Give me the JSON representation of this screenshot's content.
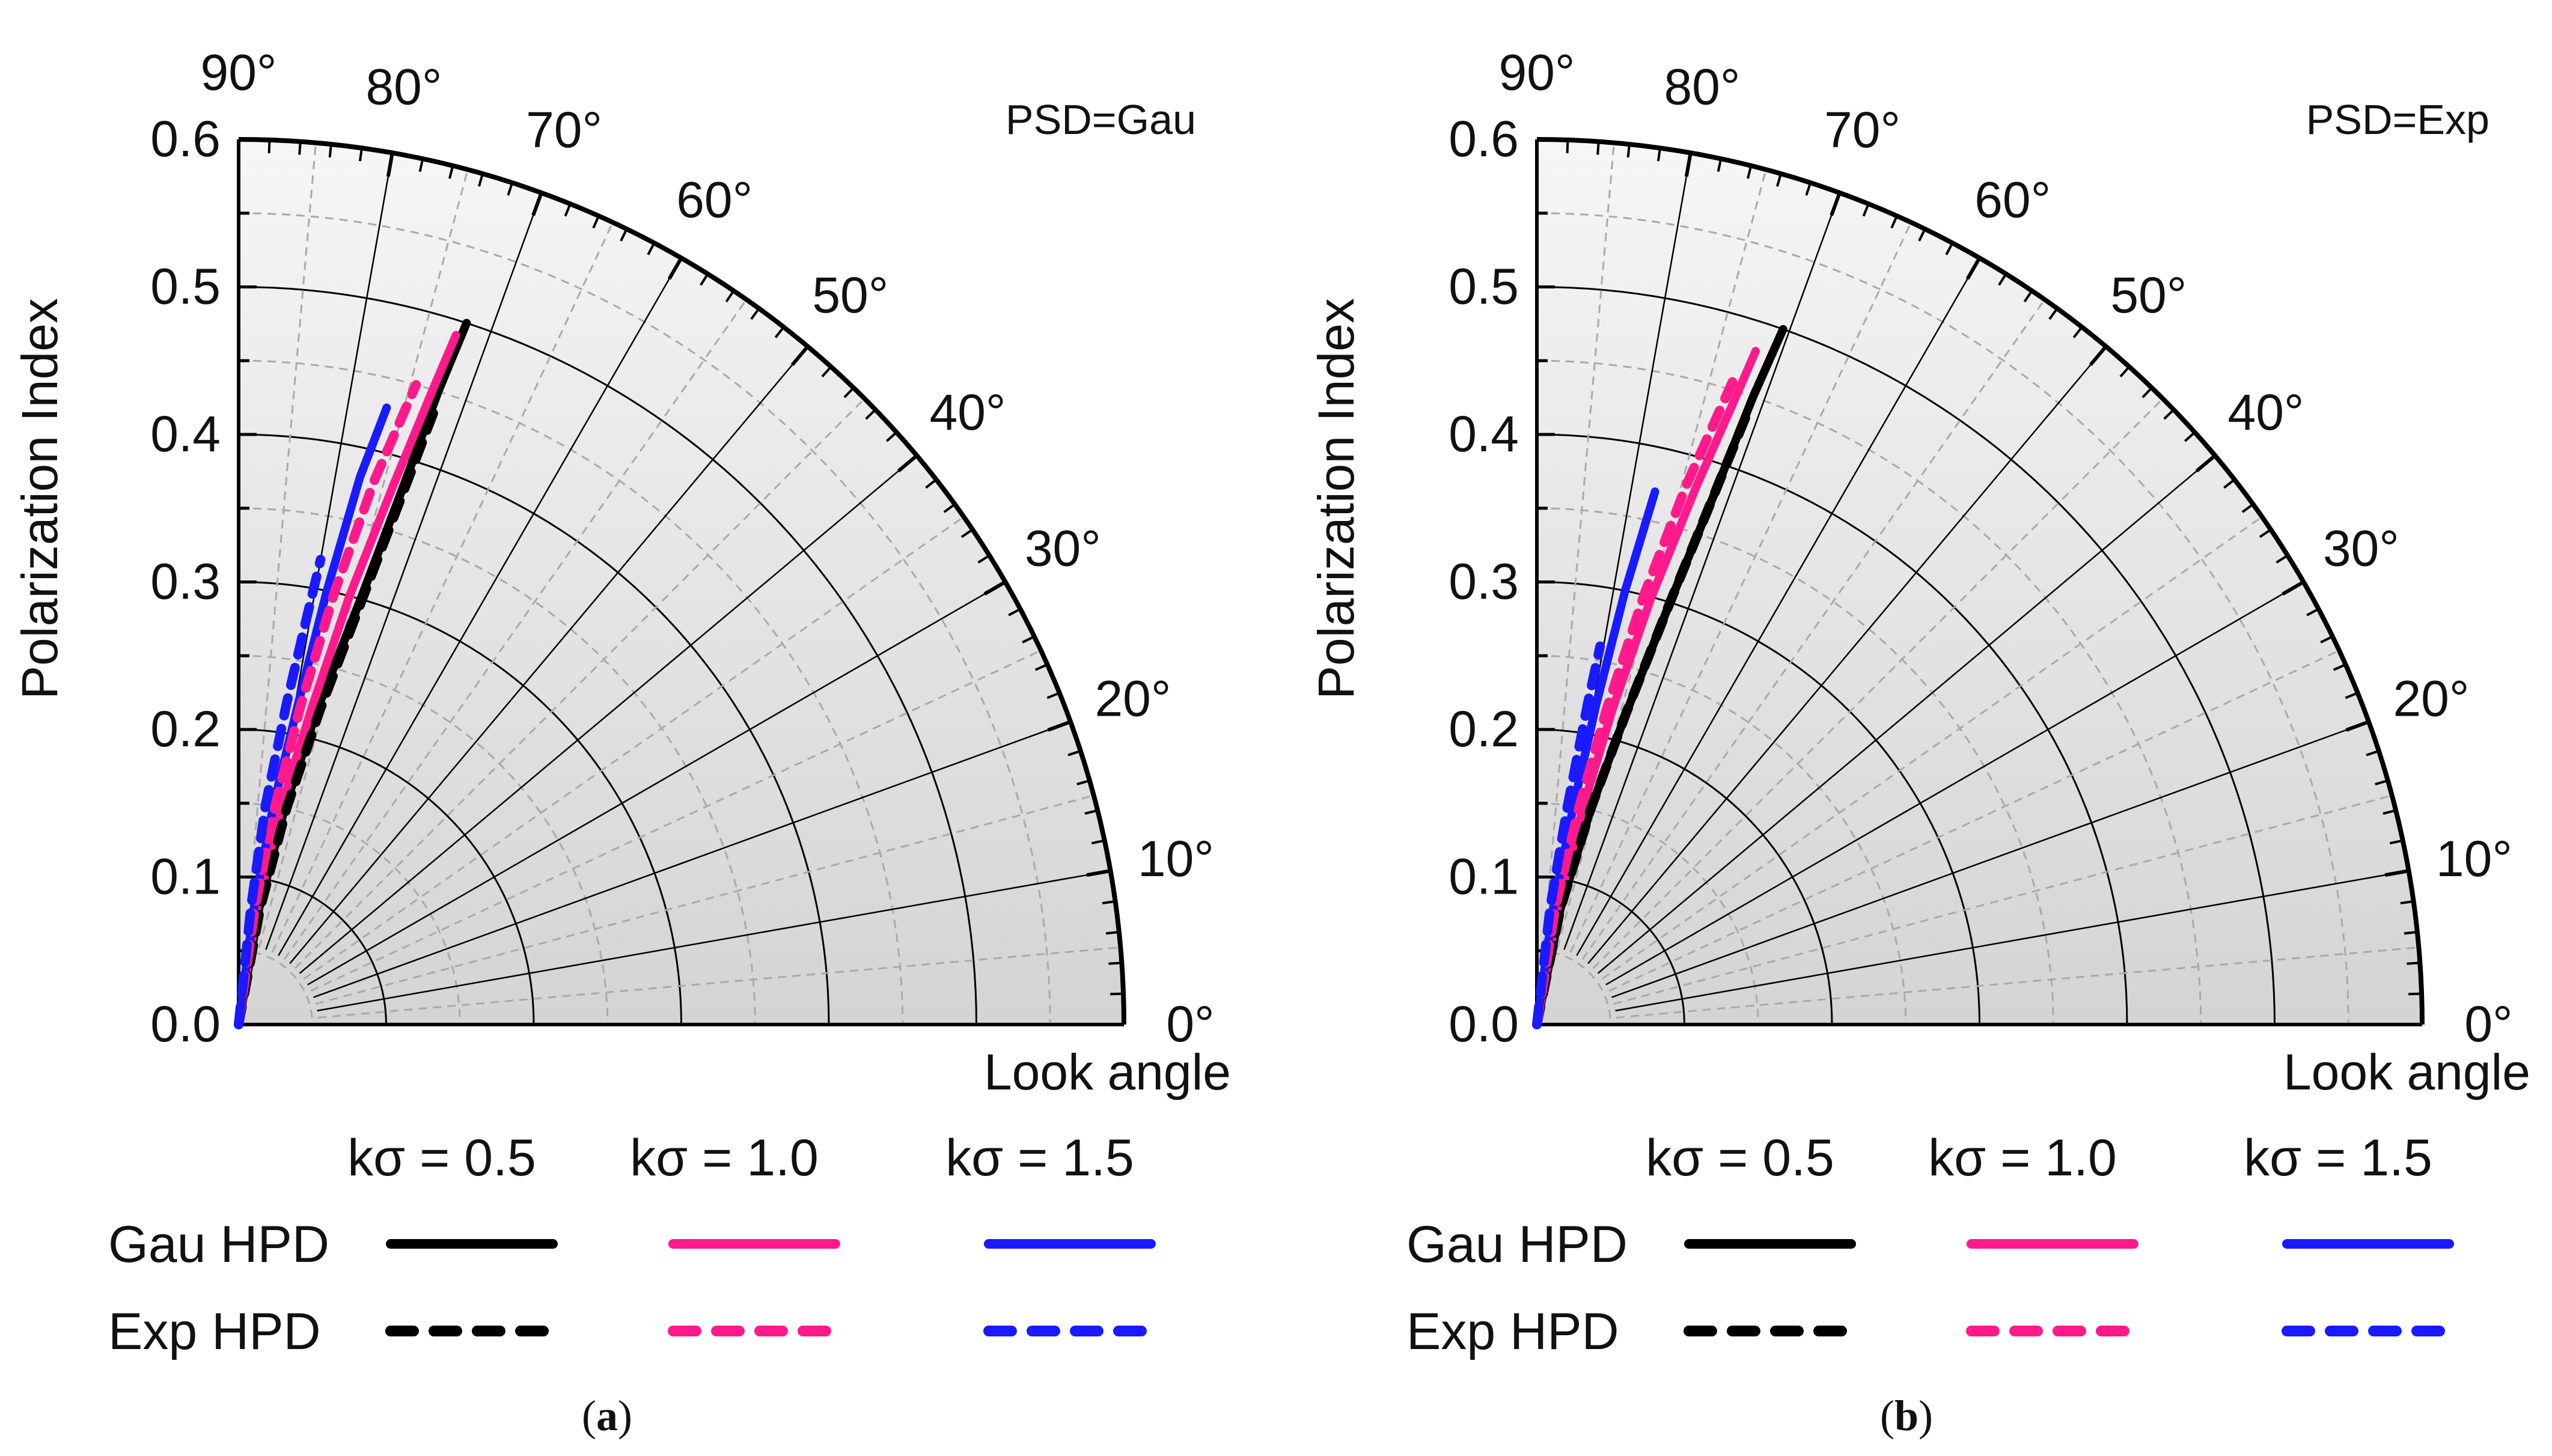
{
  "colors": {
    "ks_0.5": "#000000",
    "ks_1.0": "#ff1a8c",
    "ks_1.5": "#1a1aff",
    "grid_major": "#000000",
    "grid_minor": "#aaaaaa",
    "fill_outer": "#f4f4f4",
    "fill_inner": "#d6d6d6"
  },
  "legend": {
    "headers": [
      "kσ = 0.5",
      "kσ = 1.0",
      "kσ = 1.5"
    ],
    "rows": [
      "Gau HPD",
      "Exp  HPD"
    ]
  },
  "chart_data": [
    {
      "type": "line",
      "polar": true,
      "caption": "a",
      "annotation": "PSD=Gau",
      "ylabel": "Polarization Index",
      "xlabel": "Look angle",
      "r_range": [
        0,
        0.6
      ],
      "r_ticks": [
        "0.0",
        "0.1",
        "0.2",
        "0.3",
        "0.4",
        "0.5",
        "0.6"
      ],
      "theta_range_deg": [
        0,
        90
      ],
      "theta_ticks": [
        "0°",
        "10°",
        "20°",
        "30°",
        "40°",
        "50°",
        "60°",
        "70°",
        "80°",
        "90°"
      ],
      "series": [
        {
          "name": "Gau HPD",
          "k_sigma": "kσ = 0.5",
          "style": "solid",
          "theta_deg": [
            85,
            80,
            78,
            76,
            74,
            73,
            72.5,
            72
          ],
          "r": [
            0.0,
            0.08,
            0.15,
            0.22,
            0.3,
            0.38,
            0.45,
            0.5
          ]
        },
        {
          "name": "Gau HPD",
          "k_sigma": "kσ = 1.0",
          "style": "solid",
          "theta_deg": [
            85,
            81,
            79,
            77,
            75.5,
            74,
            73,
            72.5
          ],
          "r": [
            0.0,
            0.08,
            0.15,
            0.22,
            0.3,
            0.38,
            0.45,
            0.49
          ]
        },
        {
          "name": "Gau HPD",
          "k_sigma": "kσ = 1.5",
          "style": "solid",
          "theta_deg": [
            85,
            82.5,
            81,
            79.5,
            78.5,
            77.5,
            76.5
          ],
          "r": [
            0.0,
            0.08,
            0.15,
            0.22,
            0.3,
            0.38,
            0.43
          ]
        },
        {
          "name": "Exp  HPD",
          "k_sigma": "kσ = 0.5",
          "style": "dashed",
          "theta_deg": [
            84,
            79.5,
            77.5,
            75.5,
            73.8,
            72.8,
            72.3
          ],
          "r": [
            0.0,
            0.08,
            0.15,
            0.22,
            0.3,
            0.38,
            0.44
          ]
        },
        {
          "name": "Exp  HPD",
          "k_sigma": "kσ = 1.0",
          "style": "dashed",
          "theta_deg": [
            85,
            82,
            80.5,
            79,
            77.5,
            76,
            74.5
          ],
          "r": [
            0.0,
            0.08,
            0.15,
            0.22,
            0.3,
            0.38,
            0.45
          ]
        },
        {
          "name": "Exp  HPD",
          "k_sigma": "kσ = 1.5",
          "style": "dashed",
          "theta_deg": [
            86,
            84,
            83,
            81.5,
            80.5,
            80
          ],
          "r": [
            0.0,
            0.08,
            0.15,
            0.22,
            0.28,
            0.32
          ]
        }
      ]
    },
    {
      "type": "line",
      "polar": true,
      "caption": "b",
      "annotation": "PSD=Exp",
      "ylabel": "Polarization Index",
      "xlabel": "Look angle",
      "r_range": [
        0,
        0.6
      ],
      "r_ticks": [
        "0.0",
        "0.1",
        "0.2",
        "0.3",
        "0.4",
        "0.5",
        "0.6"
      ],
      "theta_range_deg": [
        0,
        90
      ],
      "theta_ticks": [
        "0°",
        "10°",
        "20°",
        "30°",
        "40°",
        "50°",
        "60°",
        "70°",
        "80°",
        "90°"
      ],
      "series": [
        {
          "name": "Gau HPD",
          "k_sigma": "kσ = 0.5",
          "style": "solid",
          "theta_deg": [
            84,
            78.5,
            76,
            74,
            72.5,
            71.5,
            71,
            70.5
          ],
          "r": [
            0.0,
            0.08,
            0.15,
            0.22,
            0.3,
            0.38,
            0.45,
            0.5
          ]
        },
        {
          "name": "Gau HPD",
          "k_sigma": "kσ = 1.0",
          "style": "solid",
          "theta_deg": [
            85,
            80,
            78,
            76.5,
            75,
            73.5,
            72.5,
            72
          ],
          "r": [
            0.0,
            0.08,
            0.15,
            0.22,
            0.3,
            0.38,
            0.44,
            0.48
          ]
        },
        {
          "name": "Gau HPD",
          "k_sigma": "kσ = 1.5",
          "style": "solid",
          "theta_deg": [
            85.5,
            82,
            80.5,
            79.5,
            78.5,
            77.5
          ],
          "r": [
            0.0,
            0.08,
            0.15,
            0.22,
            0.3,
            0.37
          ]
        },
        {
          "name": "Exp  HPD",
          "k_sigma": "kσ = 0.5",
          "style": "dashed",
          "theta_deg": [
            84,
            78.5,
            76,
            74,
            72.5,
            71.5,
            71
          ],
          "r": [
            0.0,
            0.08,
            0.15,
            0.22,
            0.3,
            0.38,
            0.44
          ]
        },
        {
          "name": "Exp  HPD",
          "k_sigma": "kσ = 1.0",
          "style": "dashed",
          "theta_deg": [
            85,
            81,
            79,
            77.5,
            76,
            74.5,
            73
          ],
          "r": [
            0.0,
            0.08,
            0.15,
            0.22,
            0.3,
            0.38,
            0.46
          ]
        },
        {
          "name": "Exp  HPD",
          "k_sigma": "kσ = 1.5",
          "style": "dashed",
          "theta_deg": [
            86,
            83.5,
            82,
            81,
            80.5
          ],
          "r": [
            0.0,
            0.08,
            0.15,
            0.22,
            0.26
          ]
        }
      ]
    }
  ]
}
